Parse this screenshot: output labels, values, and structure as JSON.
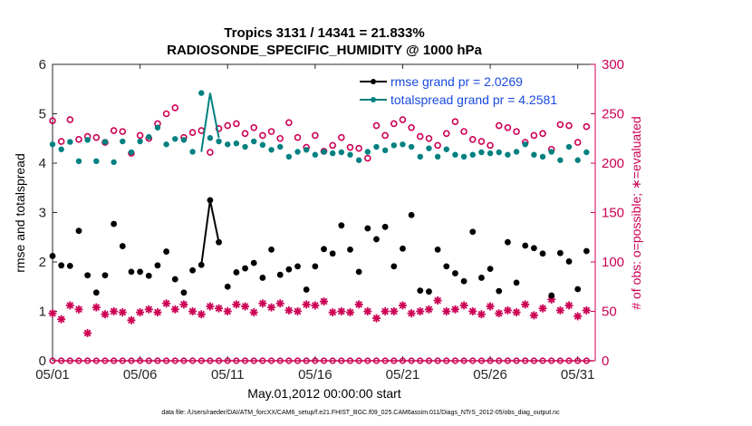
{
  "chart_data": {
    "type": "scatter",
    "title": "Tropics 3131 / 14341 = 21.833%",
    "subtitle": "RADIOSONDE_SPECIFIC_HUMIDITY @ 1000 hPa",
    "xlabel": "May.01,2012 00:00:00 start",
    "ylabel_left": "rmse and totalspread",
    "ylabel_right": "# of obs: o=possible; ∗=evaluated",
    "footnote": "data file: /Users/raeder/DAI/ATM_forcXX/CAM6_setup/f.e21.FHIST_BGC.f09_025.CAM6assim.011/Diags_NTrS_2012-05/obs_diag_output.nc",
    "x_ticks": [
      "05/01",
      "05/06",
      "05/11",
      "05/16",
      "05/21",
      "05/26",
      "05/31"
    ],
    "x_tick_values": [
      1,
      6,
      11,
      16,
      21,
      26,
      31
    ],
    "xlim": [
      1,
      32
    ],
    "ylim_left": [
      0,
      6
    ],
    "ylim_right": [
      0,
      300
    ],
    "y_ticks_left": [
      "0",
      "1",
      "2",
      "3",
      "4",
      "5",
      "6"
    ],
    "y_ticks_right": [
      "0",
      "50",
      "100",
      "150",
      "200",
      "250",
      "300"
    ],
    "colors": {
      "rmse": "#000000",
      "spread": "#008080",
      "obs": "#cc0055",
      "legend_text": "#1a4ae0"
    },
    "legend": [
      {
        "label": "rmse grand pr = 2.0269",
        "series": "rmse"
      },
      {
        "label": "totalspread grand pr = 4.2581",
        "series": "spread"
      }
    ],
    "rmse": {
      "x": [
        1.0,
        1.5,
        2.0,
        2.5,
        3.0,
        3.5,
        4.0,
        4.5,
        5.0,
        5.5,
        6.0,
        6.5,
        7.0,
        7.5,
        8.0,
        8.5,
        9.0,
        9.5,
        10.0,
        10.5,
        11.0,
        11.5,
        12.0,
        12.5,
        13.0,
        13.5,
        14.0,
        14.5,
        15.0,
        15.5,
        16.0,
        16.5,
        17.0,
        17.5,
        18.0,
        18.5,
        19.0,
        19.5,
        20.0,
        20.5,
        21.0,
        21.5,
        22.0,
        22.5,
        23.0,
        23.5,
        24.0,
        24.5,
        25.0,
        25.5,
        26.0,
        26.5,
        27.0,
        27.5,
        28.0,
        28.5,
        29.0,
        29.5,
        30.0,
        30.5,
        31.0,
        31.5
      ],
      "y": [
        2.12,
        1.93,
        1.92,
        2.63,
        1.73,
        1.38,
        1.73,
        2.77,
        2.32,
        1.8,
        1.8,
        1.72,
        1.93,
        2.21,
        1.65,
        1.38,
        1.83,
        1.94,
        3.25,
        2.4,
        1.5,
        1.79,
        1.87,
        1.98,
        1.68,
        2.25,
        1.74,
        1.85,
        1.91,
        1.44,
        1.91,
        2.26,
        2.17,
        2.74,
        2.25,
        1.8,
        2.68,
        2.46,
        2.71,
        1.91,
        2.27,
        2.95,
        1.42,
        1.4,
        2.25,
        1.91,
        1.77,
        1.61,
        2.61,
        1.68,
        1.86,
        1.41,
        2.4,
        1.58,
        2.33,
        2.28,
        2.17,
        1.32,
        2.18,
        2.01,
        1.45,
        2.22
      ],
      "connected_x": [
        9.5,
        10.0,
        10.5
      ],
      "connected_y": [
        1.94,
        3.25,
        2.4
      ]
    },
    "spread": {
      "x": [
        1.0,
        1.5,
        2.0,
        2.5,
        3.0,
        3.5,
        4.0,
        4.5,
        5.0,
        5.5,
        6.0,
        6.5,
        7.0,
        7.5,
        8.0,
        8.5,
        9.0,
        9.5,
        10.0,
        10.5,
        11.0,
        11.5,
        12.0,
        12.5,
        13.0,
        13.5,
        14.0,
        14.5,
        15.0,
        15.5,
        16.0,
        16.5,
        17.0,
        17.5,
        18.0,
        18.5,
        19.0,
        19.5,
        20.0,
        20.5,
        21.0,
        21.5,
        22.0,
        22.5,
        23.0,
        23.5,
        24.0,
        24.5,
        25.0,
        25.5,
        26.0,
        26.5,
        27.0,
        27.5,
        28.0,
        28.5,
        29.0,
        29.5,
        30.0,
        30.5,
        31.0,
        31.5
      ],
      "y": [
        4.38,
        4.28,
        4.43,
        4.04,
        4.47,
        4.04,
        4.43,
        4.02,
        4.44,
        4.22,
        4.44,
        4.53,
        4.72,
        4.38,
        4.49,
        4.47,
        4.23,
        5.42,
        4.51,
        4.44,
        4.38,
        4.4,
        4.33,
        4.44,
        4.37,
        4.27,
        4.33,
        4.13,
        4.23,
        4.27,
        4.17,
        4.23,
        4.2,
        4.22,
        4.17,
        4.06,
        4.23,
        4.33,
        4.26,
        4.36,
        4.38,
        4.33,
        4.13,
        4.3,
        4.13,
        4.28,
        4.17,
        4.13,
        4.17,
        4.22,
        4.2,
        4.22,
        4.17,
        4.23,
        4.38,
        4.17,
        4.13,
        4.23,
        4.06,
        4.33,
        4.06,
        4.22
      ],
      "connected_x": [
        9.5,
        10.0,
        10.5
      ],
      "connected_y": [
        4.23,
        5.42,
        4.51
      ]
    },
    "obs_possible": {
      "x": [
        1.0,
        1.5,
        2.0,
        2.5,
        3.0,
        3.5,
        4.0,
        4.5,
        5.0,
        5.5,
        6.0,
        6.5,
        7.0,
        7.5,
        8.0,
        8.5,
        9.0,
        9.5,
        10.0,
        10.5,
        11.0,
        11.5,
        12.0,
        12.5,
        13.0,
        13.5,
        14.0,
        14.5,
        15.0,
        15.5,
        16.0,
        16.5,
        17.0,
        17.5,
        18.0,
        18.5,
        19.0,
        19.5,
        20.0,
        20.5,
        21.0,
        21.5,
        22.0,
        22.5,
        23.0,
        23.5,
        24.0,
        24.5,
        25.0,
        25.5,
        26.0,
        26.5,
        27.0,
        27.5,
        28.0,
        28.5,
        29.0,
        29.5,
        30.0,
        30.5,
        31.0,
        31.5
      ],
      "y": [
        243,
        222,
        244,
        224,
        227,
        226,
        221,
        233,
        232,
        210,
        228,
        225,
        240,
        250,
        256,
        226,
        231,
        233,
        211,
        235,
        238,
        240,
        230,
        236,
        228,
        232,
        225,
        241,
        226,
        216,
        228,
        212,
        218,
        226,
        216,
        215,
        205,
        238,
        228,
        240,
        244,
        236,
        227,
        225,
        218,
        230,
        242,
        232,
        224,
        222,
        218,
        238,
        236,
        232,
        221,
        228,
        230,
        214,
        239,
        238,
        221,
        237
      ],
      "y_units": "count (right axis)"
    },
    "obs_evaluated": {
      "x": [
        1.0,
        1.5,
        2.0,
        2.5,
        3.0,
        3.5,
        4.0,
        4.5,
        5.0,
        5.5,
        6.0,
        6.5,
        7.0,
        7.5,
        8.0,
        8.5,
        9.0,
        9.5,
        10.0,
        10.5,
        11.0,
        11.5,
        12.0,
        12.5,
        13.0,
        13.5,
        14.0,
        14.5,
        15.0,
        15.5,
        16.0,
        16.5,
        17.0,
        17.5,
        18.0,
        18.5,
        19.0,
        19.5,
        20.0,
        20.5,
        21.0,
        21.5,
        22.0,
        22.5,
        23.0,
        23.5,
        24.0,
        24.5,
        25.0,
        25.5,
        26.0,
        26.5,
        27.0,
        27.5,
        28.0,
        28.5,
        29.0,
        29.5,
        30.0,
        30.5,
        31.0,
        31.5
      ],
      "y": [
        48,
        42,
        56,
        52,
        28,
        54,
        47,
        50,
        49,
        41,
        49,
        52,
        49,
        58,
        52,
        57,
        50,
        47,
        55,
        53,
        50,
        57,
        55,
        49,
        58,
        54,
        58,
        51,
        50,
        57,
        56,
        60,
        49,
        50,
        49,
        57,
        50,
        43,
        50,
        50,
        56,
        48,
        50,
        52,
        61,
        50,
        52,
        56,
        50,
        47,
        55,
        48,
        51,
        49,
        57,
        46,
        53,
        62,
        51,
        56,
        45,
        51
      ],
      "y_units": "count (right axis)"
    },
    "rejected_line_y": 0
  }
}
